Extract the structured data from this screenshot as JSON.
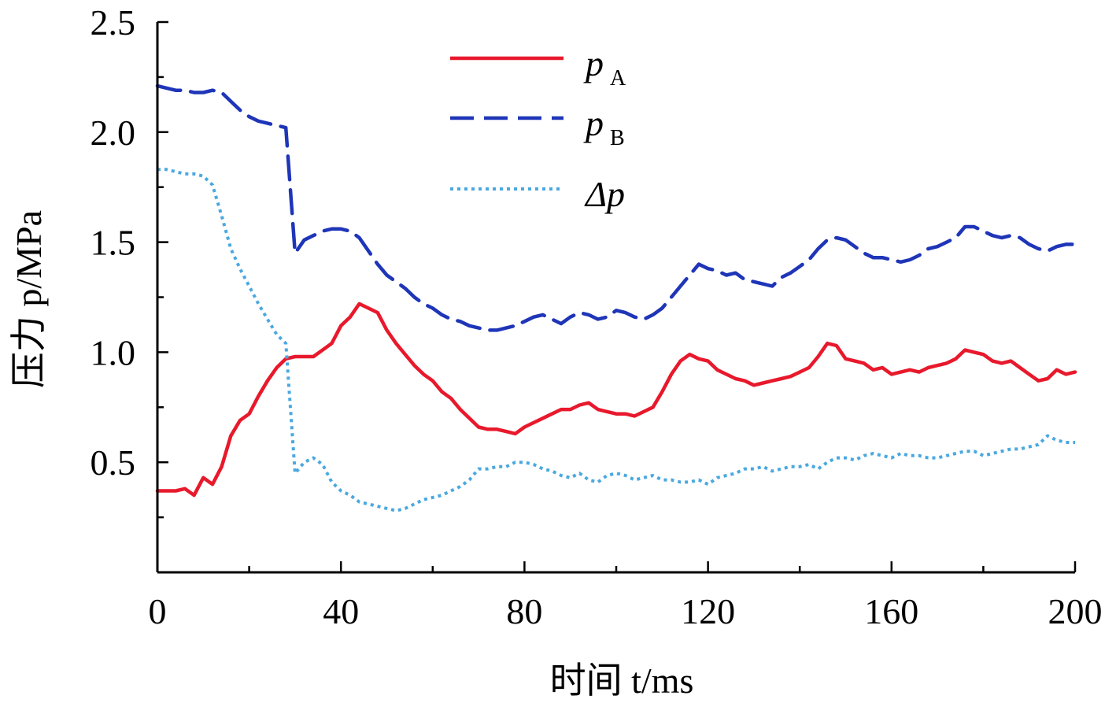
{
  "chart_data": {
    "type": "line",
    "xlabel": "时间 t/ms",
    "ylabel": "压力 p/MPa",
    "xlim": [
      0,
      200
    ],
    "ylim": [
      0,
      2.5
    ],
    "x_ticks": [
      0,
      40,
      80,
      120,
      160,
      200
    ],
    "x_tick_labels": [
      "0",
      "40",
      "80",
      "120",
      "160",
      "200"
    ],
    "y_ticks": [
      0.5,
      1.0,
      1.5,
      2.0,
      2.5
    ],
    "y_tick_labels": [
      "0.5",
      "1.0",
      "1.5",
      "2.0",
      "2.5"
    ],
    "grid": false,
    "legend_position": "top-center",
    "colors": {
      "pA": "#e8192c",
      "pB": "#1f35b8",
      "dp": "#4aa8e0"
    },
    "series": [
      {
        "name": "pA",
        "legend": {
          "symbol": "p",
          "subscript": "A"
        },
        "style": "solid",
        "x": [
          0,
          2,
          4,
          6,
          8,
          10,
          12,
          14,
          16,
          18,
          20,
          22,
          24,
          26,
          28,
          30,
          32,
          34,
          36,
          38,
          40,
          42,
          44,
          46,
          48,
          50,
          52,
          54,
          56,
          58,
          60,
          62,
          64,
          66,
          68,
          70,
          72,
          74,
          76,
          78,
          80,
          82,
          84,
          86,
          88,
          90,
          92,
          94,
          96,
          98,
          100,
          102,
          104,
          106,
          108,
          110,
          112,
          114,
          116,
          118,
          120,
          122,
          124,
          126,
          128,
          130,
          132,
          134,
          136,
          138,
          140,
          142,
          144,
          146,
          148,
          150,
          152,
          154,
          156,
          158,
          160,
          162,
          164,
          166,
          168,
          170,
          172,
          174,
          176,
          178,
          180,
          182,
          184,
          186,
          188,
          190,
          192,
          194,
          196,
          198,
          200
        ],
        "y": [
          0.37,
          0.37,
          0.37,
          0.38,
          0.35,
          0.43,
          0.4,
          0.48,
          0.62,
          0.69,
          0.72,
          0.8,
          0.87,
          0.93,
          0.97,
          0.98,
          0.98,
          0.98,
          1.01,
          1.04,
          1.12,
          1.16,
          1.22,
          1.2,
          1.18,
          1.1,
          1.04,
          0.99,
          0.94,
          0.9,
          0.87,
          0.82,
          0.79,
          0.74,
          0.7,
          0.66,
          0.65,
          0.65,
          0.64,
          0.63,
          0.66,
          0.68,
          0.7,
          0.72,
          0.74,
          0.74,
          0.76,
          0.77,
          0.74,
          0.73,
          0.72,
          0.72,
          0.71,
          0.73,
          0.75,
          0.82,
          0.9,
          0.96,
          0.99,
          0.97,
          0.96,
          0.92,
          0.9,
          0.88,
          0.87,
          0.85,
          0.86,
          0.87,
          0.88,
          0.89,
          0.91,
          0.93,
          0.98,
          1.04,
          1.03,
          0.97,
          0.96,
          0.95,
          0.92,
          0.93,
          0.9,
          0.91,
          0.92,
          0.91,
          0.93,
          0.94,
          0.95,
          0.97,
          1.01,
          1.0,
          0.99,
          0.96,
          0.95,
          0.96,
          0.93,
          0.9,
          0.87,
          0.88,
          0.92,
          0.9,
          0.91
        ]
      },
      {
        "name": "pB",
        "legend": {
          "symbol": "p",
          "subscript": "B"
        },
        "style": "dashed",
        "x": [
          0,
          2,
          4,
          6,
          8,
          10,
          12,
          14,
          16,
          18,
          20,
          22,
          24,
          26,
          28,
          30,
          32,
          34,
          36,
          38,
          40,
          42,
          44,
          46,
          48,
          50,
          52,
          54,
          56,
          58,
          60,
          62,
          64,
          66,
          68,
          70,
          72,
          74,
          76,
          78,
          80,
          82,
          84,
          86,
          88,
          90,
          92,
          94,
          96,
          98,
          100,
          102,
          104,
          106,
          108,
          110,
          112,
          114,
          116,
          118,
          120,
          122,
          124,
          126,
          128,
          130,
          132,
          134,
          136,
          138,
          140,
          142,
          144,
          146,
          148,
          150,
          152,
          154,
          156,
          158,
          160,
          162,
          164,
          166,
          168,
          170,
          172,
          174,
          176,
          178,
          180,
          182,
          184,
          186,
          188,
          190,
          192,
          194,
          196,
          198,
          200
        ],
        "y": [
          2.21,
          2.2,
          2.19,
          2.19,
          2.18,
          2.18,
          2.19,
          2.18,
          2.14,
          2.1,
          2.07,
          2.05,
          2.04,
          2.03,
          2.02,
          1.45,
          1.51,
          1.53,
          1.55,
          1.56,
          1.56,
          1.55,
          1.52,
          1.46,
          1.4,
          1.35,
          1.32,
          1.29,
          1.25,
          1.22,
          1.2,
          1.17,
          1.15,
          1.14,
          1.12,
          1.11,
          1.1,
          1.1,
          1.11,
          1.12,
          1.14,
          1.16,
          1.17,
          1.15,
          1.13,
          1.16,
          1.18,
          1.17,
          1.15,
          1.16,
          1.19,
          1.18,
          1.16,
          1.15,
          1.17,
          1.2,
          1.25,
          1.3,
          1.35,
          1.4,
          1.38,
          1.37,
          1.35,
          1.36,
          1.33,
          1.32,
          1.31,
          1.3,
          1.34,
          1.36,
          1.39,
          1.42,
          1.47,
          1.51,
          1.52,
          1.51,
          1.48,
          1.45,
          1.43,
          1.43,
          1.42,
          1.41,
          1.42,
          1.44,
          1.47,
          1.48,
          1.5,
          1.52,
          1.57,
          1.57,
          1.55,
          1.53,
          1.52,
          1.53,
          1.52,
          1.49,
          1.47,
          1.46,
          1.48,
          1.49,
          1.49
        ]
      },
      {
        "name": "dp",
        "legend": {
          "symbol": "Δp",
          "subscript": ""
        },
        "style": "dotted",
        "x": [
          0,
          2,
          4,
          6,
          8,
          10,
          12,
          14,
          16,
          18,
          20,
          22,
          24,
          26,
          28,
          30,
          32,
          34,
          36,
          38,
          40,
          42,
          44,
          46,
          48,
          50,
          52,
          54,
          56,
          58,
          60,
          62,
          64,
          66,
          68,
          70,
          72,
          74,
          76,
          78,
          80,
          82,
          84,
          86,
          88,
          90,
          92,
          94,
          96,
          98,
          100,
          102,
          104,
          106,
          108,
          110,
          112,
          114,
          116,
          118,
          120,
          122,
          124,
          126,
          128,
          130,
          132,
          134,
          136,
          138,
          140,
          142,
          144,
          146,
          148,
          150,
          152,
          154,
          156,
          158,
          160,
          162,
          164,
          166,
          168,
          170,
          172,
          174,
          176,
          178,
          180,
          182,
          184,
          186,
          188,
          190,
          192,
          194,
          196,
          198,
          200
        ],
        "y": [
          1.83,
          1.83,
          1.82,
          1.81,
          1.81,
          1.8,
          1.76,
          1.62,
          1.47,
          1.38,
          1.3,
          1.22,
          1.15,
          1.08,
          1.04,
          0.45,
          0.5,
          0.52,
          0.49,
          0.41,
          0.37,
          0.35,
          0.32,
          0.31,
          0.3,
          0.29,
          0.28,
          0.29,
          0.31,
          0.33,
          0.34,
          0.35,
          0.37,
          0.39,
          0.42,
          0.47,
          0.47,
          0.48,
          0.48,
          0.5,
          0.5,
          0.49,
          0.47,
          0.46,
          0.44,
          0.43,
          0.45,
          0.42,
          0.41,
          0.44,
          0.45,
          0.44,
          0.42,
          0.43,
          0.44,
          0.42,
          0.42,
          0.41,
          0.41,
          0.42,
          0.4,
          0.43,
          0.44,
          0.45,
          0.47,
          0.47,
          0.48,
          0.46,
          0.47,
          0.48,
          0.48,
          0.49,
          0.47,
          0.5,
          0.52,
          0.52,
          0.51,
          0.53,
          0.54,
          0.53,
          0.52,
          0.54,
          0.53,
          0.53,
          0.52,
          0.52,
          0.53,
          0.54,
          0.55,
          0.55,
          0.53,
          0.54,
          0.55,
          0.56,
          0.56,
          0.57,
          0.58,
          0.62,
          0.6,
          0.59,
          0.59
        ]
      }
    ]
  }
}
